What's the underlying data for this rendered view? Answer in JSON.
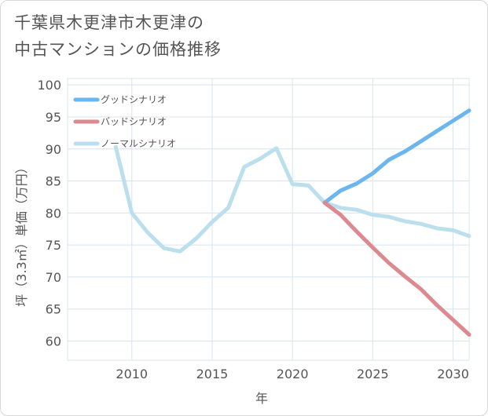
{
  "title": {
    "line1": "千葉県木更津市木更津の",
    "line2": "中古マンションの価格推移"
  },
  "chart_data": {
    "type": "line",
    "xlabel": "年",
    "ylabel": "坪（3.3㎡）単価（万円）",
    "xlim": [
      2006,
      2031
    ],
    "ylim": [
      57,
      101
    ],
    "xticks": [
      2010,
      2015,
      2020,
      2025,
      2030
    ],
    "yticks": [
      60,
      65,
      70,
      75,
      80,
      85,
      90,
      95,
      100
    ],
    "grid": true,
    "legend_position": "top-left",
    "series": [
      {
        "name": "グッドシナリオ",
        "color": "#6bb6ee",
        "x": [
          2022,
          2023,
          2024,
          2025,
          2026,
          2027,
          2028,
          2029,
          2030,
          2031
        ],
        "values": [
          81.6,
          83.5,
          84.6,
          86.2,
          88.3,
          89.6,
          91.2,
          92.8,
          94.4,
          96.0
        ]
      },
      {
        "name": "バッドシナリオ",
        "color": "#dc8a90",
        "x": [
          2022,
          2023,
          2024,
          2025,
          2026,
          2027,
          2028,
          2029,
          2030,
          2031
        ],
        "values": [
          81.6,
          79.7,
          77.1,
          74.6,
          72.2,
          70.1,
          68.1,
          65.6,
          63.3,
          61.0
        ]
      },
      {
        "name": "ノーマルシナリオ",
        "color": "#bcdfee",
        "x": [
          2009,
          2010,
          2011,
          2012,
          2013,
          2014,
          2015,
          2016,
          2017,
          2018,
          2019,
          2020,
          2021,
          2022,
          2023,
          2024,
          2025,
          2026,
          2027,
          2028,
          2029,
          2030,
          2031
        ],
        "values": [
          90.3,
          80.0,
          76.9,
          74.5,
          74.0,
          76.0,
          78.6,
          80.8,
          87.2,
          88.5,
          90.1,
          84.5,
          84.3,
          81.6,
          80.8,
          80.5,
          79.7,
          79.4,
          78.7,
          78.3,
          77.6,
          77.3,
          76.4
        ]
      }
    ]
  }
}
